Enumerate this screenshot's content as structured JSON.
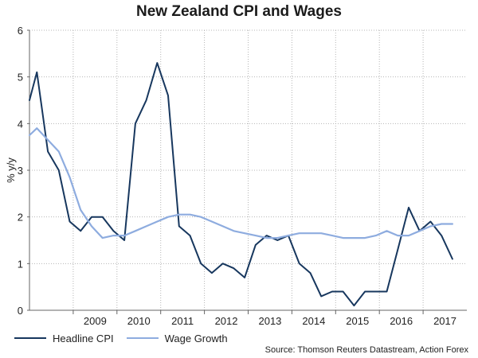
{
  "chart_data": {
    "type": "line",
    "title": "New Zealand CPI and Wages",
    "xlabel": "",
    "ylabel": "% y/y",
    "ylim": [
      0,
      6
    ],
    "yticks": [
      0,
      1,
      2,
      3,
      4,
      5,
      6
    ],
    "xlim": [
      2008.0,
      2018.0
    ],
    "xtick_labels": [
      "2009",
      "2010",
      "2011",
      "2012",
      "2013",
      "2014",
      "2015",
      "2016",
      "2017"
    ],
    "grid": true,
    "legend_position": "bottom",
    "series": [
      {
        "name": "Headline CPI",
        "color": "#17375e",
        "x": [
          2008.0,
          2008.17,
          2008.42,
          2008.67,
          2008.92,
          2009.17,
          2009.42,
          2009.67,
          2009.92,
          2010.17,
          2010.42,
          2010.67,
          2010.92,
          2011.17,
          2011.42,
          2011.67,
          2011.92,
          2012.17,
          2012.42,
          2012.67,
          2012.92,
          2013.17,
          2013.42,
          2013.67,
          2013.92,
          2014.17,
          2014.42,
          2014.67,
          2014.92,
          2015.17,
          2015.42,
          2015.67,
          2015.92,
          2016.17,
          2016.42,
          2016.67,
          2016.92,
          2017.17,
          2017.42,
          2017.67
        ],
        "values": [
          4.5,
          5.1,
          3.4,
          3.0,
          1.9,
          1.7,
          2.0,
          2.0,
          1.7,
          1.5,
          4.0,
          4.5,
          5.3,
          4.6,
          1.8,
          1.6,
          1.0,
          0.8,
          1.0,
          0.9,
          0.7,
          1.4,
          1.6,
          1.5,
          1.6,
          1.0,
          0.8,
          0.3,
          0.4,
          0.4,
          0.1,
          0.4,
          0.4,
          0.4,
          1.3,
          2.2,
          1.7,
          1.9,
          1.6,
          1.1
        ]
      },
      {
        "name": "Wage Growth",
        "color": "#8eacdf",
        "x": [
          2008.0,
          2008.17,
          2008.42,
          2008.67,
          2008.92,
          2009.17,
          2009.42,
          2009.67,
          2009.92,
          2010.17,
          2010.42,
          2010.67,
          2010.92,
          2011.17,
          2011.42,
          2011.67,
          2011.92,
          2012.17,
          2012.42,
          2012.67,
          2012.92,
          2013.17,
          2013.42,
          2013.67,
          2013.92,
          2014.17,
          2014.42,
          2014.67,
          2014.92,
          2015.17,
          2015.42,
          2015.67,
          2015.92,
          2016.17,
          2016.42,
          2016.67,
          2016.92,
          2017.17,
          2017.42,
          2017.67
        ],
        "values": [
          3.75,
          3.9,
          3.65,
          3.4,
          2.85,
          2.15,
          1.8,
          1.55,
          1.6,
          1.6,
          1.7,
          1.8,
          1.9,
          2.0,
          2.05,
          2.05,
          2.0,
          1.9,
          1.8,
          1.7,
          1.65,
          1.6,
          1.55,
          1.55,
          1.6,
          1.65,
          1.65,
          1.65,
          1.6,
          1.55,
          1.55,
          1.55,
          1.6,
          1.7,
          1.6,
          1.6,
          1.7,
          1.8,
          1.85,
          1.85
        ]
      }
    ]
  },
  "source": "Source: Thomson Reuters Datastream, Action Forex"
}
